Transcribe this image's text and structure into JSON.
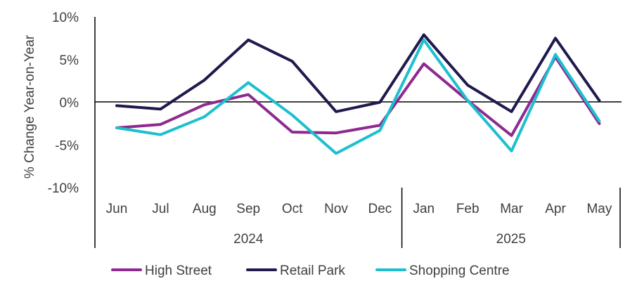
{
  "chart_data": {
    "type": "line",
    "ylabel": "% Change Year-on-Year",
    "ylim": [
      -10,
      10
    ],
    "yticks": [
      10,
      5,
      0,
      -5,
      -10
    ],
    "ytick_labels": [
      "10%",
      "5%",
      "0%",
      "-5%",
      "-10%"
    ],
    "categories": [
      "Jun",
      "Jul",
      "Aug",
      "Sep",
      "Oct",
      "Nov",
      "Dec",
      "Jan",
      "Feb",
      "Mar",
      "Apr",
      "May"
    ],
    "year_groups": [
      {
        "label": "2024",
        "start": 0,
        "end": 6
      },
      {
        "label": "2025",
        "start": 7,
        "end": 11
      }
    ],
    "legend_position": "bottom",
    "grid": false,
    "series": [
      {
        "name": "High Street",
        "color": "#8e2a8f",
        "values": [
          -3.0,
          -2.6,
          -0.3,
          0.9,
          -3.5,
          -3.6,
          -2.7,
          4.5,
          0.2,
          -3.9,
          5.3,
          -2.5
        ]
      },
      {
        "name": "Retail Park",
        "color": "#1f1a4d",
        "values": [
          -0.4,
          -0.8,
          2.6,
          7.3,
          4.8,
          -1.1,
          0.0,
          7.9,
          2.0,
          -1.1,
          7.5,
          0.2
        ]
      },
      {
        "name": "Shopping Centre",
        "color": "#1dbfcf",
        "values": [
          -3.0,
          -3.8,
          -1.7,
          2.3,
          -1.5,
          -6.0,
          -3.3,
          7.3,
          0.2,
          -5.7,
          5.6,
          -2.2
        ]
      }
    ]
  }
}
